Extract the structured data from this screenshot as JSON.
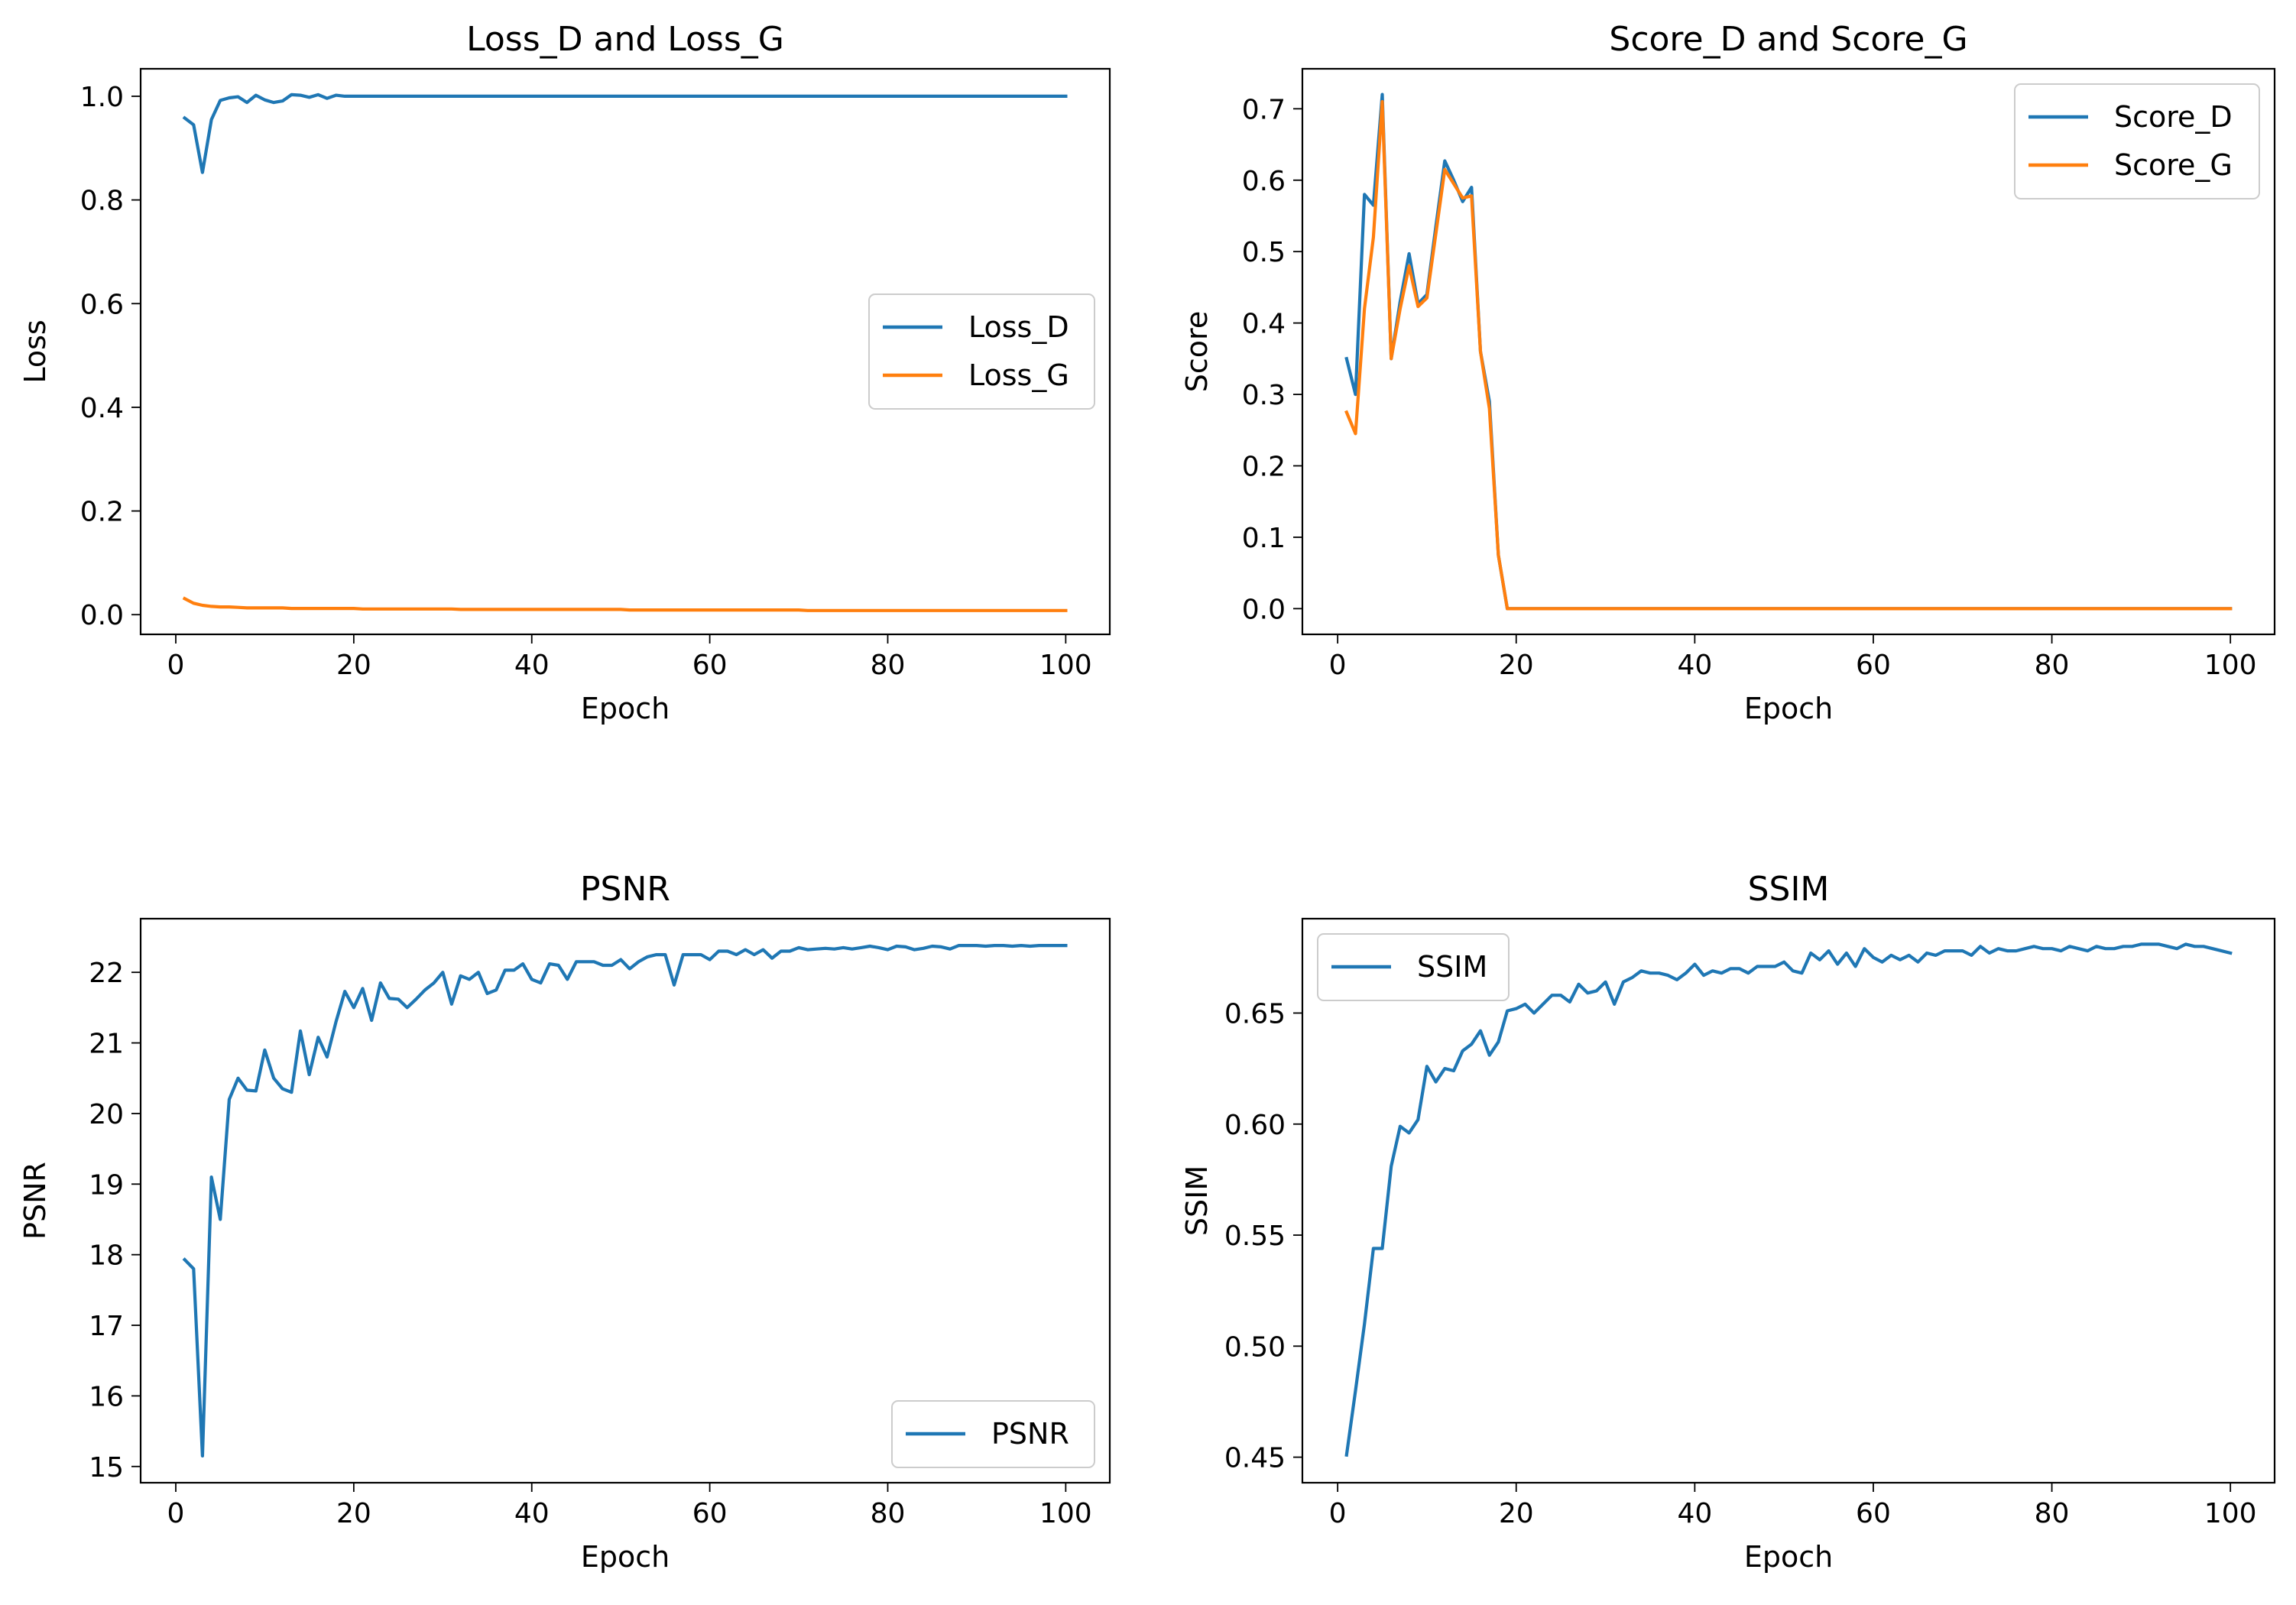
{
  "chart_data": [
    {
      "type": "line",
      "title": "Loss_D and Loss_G",
      "xlabel": "Epoch",
      "ylabel": "Loss",
      "xlim": [
        -3.95,
        104.95
      ],
      "ylim": [
        -0.038,
        1.053
      ],
      "xticks": [
        0,
        20,
        40,
        60,
        80,
        100
      ],
      "yticks": [
        0.0,
        0.2,
        0.4,
        0.6,
        0.8,
        1.0
      ],
      "ytick_labels": [
        "0.0",
        "0.2",
        "0.4",
        "0.6",
        "0.8",
        "1.0"
      ],
      "legend": "center-right",
      "x": [
        1,
        2,
        3,
        4,
        5,
        6,
        7,
        8,
        9,
        10,
        11,
        12,
        13,
        14,
        15,
        16,
        17,
        18,
        19,
        20,
        21,
        22,
        23,
        24,
        25,
        26,
        27,
        28,
        29,
        30,
        31,
        32,
        33,
        34,
        35,
        36,
        37,
        38,
        39,
        40,
        41,
        42,
        43,
        44,
        45,
        46,
        47,
        48,
        49,
        50,
        51,
        52,
        53,
        54,
        55,
        56,
        57,
        58,
        59,
        60,
        61,
        62,
        63,
        64,
        65,
        66,
        67,
        68,
        69,
        70,
        71,
        72,
        73,
        74,
        75,
        76,
        77,
        78,
        79,
        80,
        81,
        82,
        83,
        84,
        85,
        86,
        87,
        88,
        89,
        90,
        91,
        92,
        93,
        94,
        95,
        96,
        97,
        98,
        99,
        100
      ],
      "series": [
        {
          "name": "Loss_D",
          "color": "#1f77b4",
          "values": [
            0.958,
            0.945,
            0.853,
            0.955,
            0.992,
            0.997,
            0.999,
            0.988,
            1.002,
            0.993,
            0.988,
            0.991,
            1.003,
            1.002,
            0.998,
            1.003,
            0.996,
            1.002,
            1.0,
            1.0,
            1.0,
            1.0,
            1.0,
            1.0,
            1.0,
            1.0,
            1.0,
            1.0,
            1.0,
            1.0,
            1.0,
            1.0,
            1.0,
            1.0,
            1.0,
            1.0,
            1.0,
            1.0,
            1.0,
            1.0,
            1.0,
            1.0,
            1.0,
            1.0,
            1.0,
            1.0,
            1.0,
            1.0,
            1.0,
            1.0,
            1.0,
            1.0,
            1.0,
            1.0,
            1.0,
            1.0,
            1.0,
            1.0,
            1.0,
            1.0,
            1.0,
            1.0,
            1.0,
            1.0,
            1.0,
            1.0,
            1.0,
            1.0,
            1.0,
            1.0,
            1.0,
            1.0,
            1.0,
            1.0,
            1.0,
            1.0,
            1.0,
            1.0,
            1.0,
            1.0,
            1.0,
            1.0,
            1.0,
            1.0,
            1.0,
            1.0,
            1.0,
            1.0,
            1.0,
            1.0,
            1.0,
            1.0,
            1.0,
            1.0,
            1.0,
            1.0,
            1.0,
            1.0,
            1.0,
            1.0
          ]
        },
        {
          "name": "Loss_G",
          "color": "#ff7f0e",
          "values": [
            0.031,
            0.022,
            0.018,
            0.016,
            0.015,
            0.015,
            0.014,
            0.013,
            0.013,
            0.013,
            0.013,
            0.013,
            0.012,
            0.012,
            0.012,
            0.012,
            0.012,
            0.012,
            0.012,
            0.012,
            0.011,
            0.011,
            0.011,
            0.011,
            0.011,
            0.011,
            0.011,
            0.011,
            0.011,
            0.011,
            0.011,
            0.01,
            0.01,
            0.01,
            0.01,
            0.01,
            0.01,
            0.01,
            0.01,
            0.01,
            0.01,
            0.01,
            0.01,
            0.01,
            0.01,
            0.01,
            0.01,
            0.01,
            0.01,
            0.01,
            0.009,
            0.009,
            0.009,
            0.009,
            0.009,
            0.009,
            0.009,
            0.009,
            0.009,
            0.009,
            0.009,
            0.009,
            0.009,
            0.009,
            0.009,
            0.009,
            0.009,
            0.009,
            0.009,
            0.009,
            0.008,
            0.008,
            0.008,
            0.008,
            0.008,
            0.008,
            0.008,
            0.008,
            0.008,
            0.008,
            0.008,
            0.008,
            0.008,
            0.008,
            0.008,
            0.008,
            0.008,
            0.008,
            0.008,
            0.008,
            0.008,
            0.008,
            0.008,
            0.008,
            0.008,
            0.008,
            0.008,
            0.008,
            0.008,
            0.008
          ]
        }
      ]
    },
    {
      "type": "line",
      "title": "Score_D and Score_G",
      "xlabel": "Epoch",
      "ylabel": "Score",
      "xlim": [
        -3.95,
        104.95
      ],
      "ylim": [
        -0.036,
        0.756
      ],
      "xticks": [
        0,
        20,
        40,
        60,
        80,
        100
      ],
      "yticks": [
        0.0,
        0.1,
        0.2,
        0.3,
        0.4,
        0.5,
        0.6,
        0.7
      ],
      "ytick_labels": [
        "0.0",
        "0.1",
        "0.2",
        "0.3",
        "0.4",
        "0.5",
        "0.6",
        "0.7"
      ],
      "legend": "top-right",
      "x": [
        1,
        2,
        3,
        4,
        5,
        6,
        7,
        8,
        9,
        10,
        11,
        12,
        13,
        14,
        15,
        16,
        17,
        18,
        19,
        20,
        21,
        22,
        23,
        24,
        25,
        26,
        27,
        28,
        29,
        30,
        31,
        32,
        33,
        34,
        35,
        36,
        37,
        38,
        39,
        40,
        41,
        42,
        43,
        44,
        45,
        46,
        47,
        48,
        49,
        50,
        51,
        52,
        53,
        54,
        55,
        56,
        57,
        58,
        59,
        60,
        61,
        62,
        63,
        64,
        65,
        66,
        67,
        68,
        69,
        70,
        71,
        72,
        73,
        74,
        75,
        76,
        77,
        78,
        79,
        80,
        81,
        82,
        83,
        84,
        85,
        86,
        87,
        88,
        89,
        90,
        91,
        92,
        93,
        94,
        95,
        96,
        97,
        98,
        99,
        100
      ],
      "series": [
        {
          "name": "Score_D",
          "color": "#1f77b4",
          "values": [
            0.35,
            0.3,
            0.58,
            0.565,
            0.72,
            0.35,
            0.43,
            0.497,
            0.427,
            0.44,
            0.535,
            0.627,
            0.6,
            0.57,
            0.59,
            0.36,
            0.29,
            0.075,
            0.0,
            0.0,
            0.0,
            0.0,
            0.0,
            0.0,
            0.0,
            0.0,
            0.0,
            0.0,
            0.0,
            0.0,
            0.0,
            0.0,
            0.0,
            0.0,
            0.0,
            0.0,
            0.0,
            0.0,
            0.0,
            0.0,
            0.0,
            0.0,
            0.0,
            0.0,
            0.0,
            0.0,
            0.0,
            0.0,
            0.0,
            0.0,
            0.0,
            0.0,
            0.0,
            0.0,
            0.0,
            0.0,
            0.0,
            0.0,
            0.0,
            0.0,
            0.0,
            0.0,
            0.0,
            0.0,
            0.0,
            0.0,
            0.0,
            0.0,
            0.0,
            0.0,
            0.0,
            0.0,
            0.0,
            0.0,
            0.0,
            0.0,
            0.0,
            0.0,
            0.0,
            0.0,
            0.0,
            0.0,
            0.0,
            0.0,
            0.0,
            0.0,
            0.0,
            0.0,
            0.0,
            0.0,
            0.0,
            0.0,
            0.0,
            0.0,
            0.0,
            0.0,
            0.0,
            0.0,
            0.0,
            0.0
          ]
        },
        {
          "name": "Score_G",
          "color": "#ff7f0e",
          "values": [
            0.275,
            0.245,
            0.42,
            0.52,
            0.71,
            0.35,
            0.42,
            0.48,
            0.423,
            0.435,
            0.525,
            0.615,
            0.595,
            0.575,
            0.578,
            0.36,
            0.28,
            0.075,
            0.0,
            0.0,
            0.0,
            0.0,
            0.0,
            0.0,
            0.0,
            0.0,
            0.0,
            0.0,
            0.0,
            0.0,
            0.0,
            0.0,
            0.0,
            0.0,
            0.0,
            0.0,
            0.0,
            0.0,
            0.0,
            0.0,
            0.0,
            0.0,
            0.0,
            0.0,
            0.0,
            0.0,
            0.0,
            0.0,
            0.0,
            0.0,
            0.0,
            0.0,
            0.0,
            0.0,
            0.0,
            0.0,
            0.0,
            0.0,
            0.0,
            0.0,
            0.0,
            0.0,
            0.0,
            0.0,
            0.0,
            0.0,
            0.0,
            0.0,
            0.0,
            0.0,
            0.0,
            0.0,
            0.0,
            0.0,
            0.0,
            0.0,
            0.0,
            0.0,
            0.0,
            0.0,
            0.0,
            0.0,
            0.0,
            0.0,
            0.0,
            0.0,
            0.0,
            0.0,
            0.0,
            0.0,
            0.0,
            0.0,
            0.0,
            0.0,
            0.0,
            0.0,
            0.0,
            0.0,
            0.0,
            0.0
          ]
        }
      ]
    },
    {
      "type": "line",
      "title": "PSNR",
      "xlabel": "Epoch",
      "ylabel": "PSNR",
      "xlim": [
        -3.95,
        104.95
      ],
      "ylim": [
        14.77,
        22.76
      ],
      "xticks": [
        0,
        20,
        40,
        60,
        80,
        100
      ],
      "yticks": [
        15,
        16,
        17,
        18,
        19,
        20,
        21,
        22
      ],
      "ytick_labels": [
        "15",
        "16",
        "17",
        "18",
        "19",
        "20",
        "21",
        "22"
      ],
      "legend": "bottom-right",
      "x": [
        1,
        2,
        3,
        4,
        5,
        6,
        7,
        8,
        9,
        10,
        11,
        12,
        13,
        14,
        15,
        16,
        17,
        18,
        19,
        20,
        21,
        22,
        23,
        24,
        25,
        26,
        27,
        28,
        29,
        30,
        31,
        32,
        33,
        34,
        35,
        36,
        37,
        38,
        39,
        40,
        41,
        42,
        43,
        44,
        45,
        46,
        47,
        48,
        49,
        50,
        51,
        52,
        53,
        54,
        55,
        56,
        57,
        58,
        59,
        60,
        61,
        62,
        63,
        64,
        65,
        66,
        67,
        68,
        69,
        70,
        71,
        72,
        73,
        74,
        75,
        76,
        77,
        78,
        79,
        80,
        81,
        82,
        83,
        84,
        85,
        86,
        87,
        88,
        89,
        90,
        91,
        92,
        93,
        94,
        95,
        96,
        97,
        98,
        99,
        100
      ],
      "series": [
        {
          "name": "PSNR",
          "color": "#1f77b4",
          "values": [
            17.93,
            17.8,
            15.15,
            19.1,
            18.5,
            20.2,
            20.5,
            20.33,
            20.32,
            20.9,
            20.5,
            20.35,
            20.3,
            21.17,
            20.55,
            21.08,
            20.8,
            21.3,
            21.73,
            21.5,
            21.77,
            21.32,
            21.85,
            21.63,
            21.62,
            21.5,
            21.62,
            21.75,
            21.85,
            22.0,
            21.55,
            21.95,
            21.9,
            22.0,
            21.7,
            21.75,
            22.03,
            22.03,
            22.12,
            21.9,
            21.85,
            22.12,
            22.1,
            21.9,
            22.15,
            22.15,
            22.15,
            22.1,
            22.1,
            22.18,
            22.05,
            22.15,
            22.22,
            22.25,
            22.25,
            21.82,
            22.25,
            22.25,
            22.25,
            22.18,
            22.3,
            22.3,
            22.25,
            22.32,
            22.25,
            22.32,
            22.2,
            22.3,
            22.3,
            22.35,
            22.32,
            22.33,
            22.34,
            22.33,
            22.35,
            22.33,
            22.35,
            22.37,
            22.35,
            22.32,
            22.37,
            22.36,
            22.32,
            22.34,
            22.37,
            22.36,
            22.33,
            22.38,
            22.38,
            22.38,
            22.37,
            22.38,
            22.38,
            22.37,
            22.38,
            22.37,
            22.38,
            22.38,
            22.38,
            22.38
          ]
        }
      ]
    },
    {
      "type": "line",
      "title": "SSIM",
      "xlabel": "Epoch",
      "ylabel": "SSIM",
      "xlim": [
        -3.95,
        104.95
      ],
      "ylim": [
        0.4385,
        0.6925
      ],
      "xticks": [
        0,
        20,
        40,
        60,
        80,
        100
      ],
      "yticks": [
        0.45,
        0.5,
        0.55,
        0.6,
        0.65
      ],
      "ytick_labels": [
        "0.45",
        "0.50",
        "0.55",
        "0.60",
        "0.65"
      ],
      "legend": "top-left",
      "x": [
        1,
        2,
        3,
        4,
        5,
        6,
        7,
        8,
        9,
        10,
        11,
        12,
        13,
        14,
        15,
        16,
        17,
        18,
        19,
        20,
        21,
        22,
        23,
        24,
        25,
        26,
        27,
        28,
        29,
        30,
        31,
        32,
        33,
        34,
        35,
        36,
        37,
        38,
        39,
        40,
        41,
        42,
        43,
        44,
        45,
        46,
        47,
        48,
        49,
        50,
        51,
        52,
        53,
        54,
        55,
        56,
        57,
        58,
        59,
        60,
        61,
        62,
        63,
        64,
        65,
        66,
        67,
        68,
        69,
        70,
        71,
        72,
        73,
        74,
        75,
        76,
        77,
        78,
        79,
        80,
        81,
        82,
        83,
        84,
        85,
        86,
        87,
        88,
        89,
        90,
        91,
        92,
        93,
        94,
        95,
        96,
        97,
        98,
        99,
        100
      ],
      "series": [
        {
          "name": "SSIM",
          "color": "#1f77b4",
          "values": [
            0.451,
            0.48,
            0.51,
            0.544,
            0.544,
            0.581,
            0.599,
            0.596,
            0.602,
            0.626,
            0.619,
            0.625,
            0.624,
            0.633,
            0.636,
            0.642,
            0.631,
            0.637,
            0.651,
            0.652,
            0.654,
            0.65,
            0.654,
            0.658,
            0.658,
            0.655,
            0.663,
            0.659,
            0.66,
            0.664,
            0.654,
            0.664,
            0.666,
            0.669,
            0.668,
            0.668,
            0.667,
            0.665,
            0.668,
            0.672,
            0.667,
            0.669,
            0.668,
            0.67,
            0.67,
            0.668,
            0.671,
            0.671,
            0.671,
            0.673,
            0.669,
            0.668,
            0.677,
            0.674,
            0.678,
            0.672,
            0.677,
            0.671,
            0.679,
            0.675,
            0.673,
            0.676,
            0.674,
            0.676,
            0.673,
            0.677,
            0.676,
            0.678,
            0.678,
            0.678,
            0.676,
            0.68,
            0.677,
            0.679,
            0.678,
            0.678,
            0.679,
            0.68,
            0.679,
            0.679,
            0.678,
            0.68,
            0.679,
            0.678,
            0.68,
            0.679,
            0.679,
            0.68,
            0.68,
            0.681,
            0.681,
            0.681,
            0.68,
            0.679,
            0.681,
            0.68,
            0.68,
            0.679,
            0.678,
            0.677
          ]
        }
      ]
    }
  ]
}
